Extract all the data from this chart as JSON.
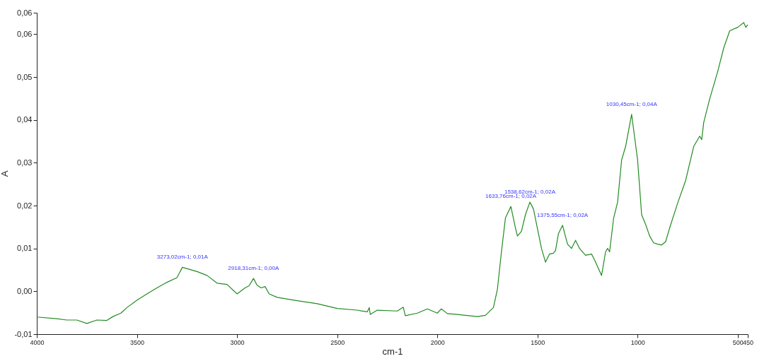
{
  "chart_data": {
    "type": "line",
    "xlabel": "cm-1",
    "ylabel": "A",
    "xlim": [
      4000,
      450
    ],
    "xticks": [
      4000,
      3500,
      3000,
      2500,
      2000,
      1500,
      1000,
      500,
      450
    ],
    "ylim": [
      -0.01,
      0.065
    ],
    "yticks": [
      {
        "value": -0.01,
        "label": "-0,01"
      },
      {
        "value": 0,
        "label": "0,00"
      },
      {
        "value": 0.01,
        "label": "0,01"
      },
      {
        "value": 0.02,
        "label": "0,02"
      },
      {
        "value": 0.03,
        "label": "0,03"
      },
      {
        "value": 0.04,
        "label": "0,04"
      },
      {
        "value": 0.05,
        "label": "0,05"
      },
      {
        "value": 0.06,
        "label": "0,06"
      },
      {
        "value": 0.065,
        "label": "0,06"
      }
    ],
    "grid": false,
    "legend": false,
    "marker": "none",
    "line_style": "solid",
    "series": [
      {
        "color": "#228b22",
        "x": [
          4000,
          3900,
          3850,
          3800,
          3750,
          3700,
          3650,
          3620,
          3580,
          3550,
          3500,
          3450,
          3400,
          3350,
          3300,
          3273,
          3200,
          3150,
          3100,
          3050,
          3000,
          2960,
          2940,
          2918,
          2900,
          2880,
          2860,
          2840,
          2800,
          2700,
          2600,
          2500,
          2400,
          2350,
          2340,
          2335,
          2300,
          2200,
          2170,
          2160,
          2100,
          2050,
          2000,
          1980,
          1950,
          1900,
          1800,
          1760,
          1720,
          1700,
          1680,
          1660,
          1633,
          1610,
          1600,
          1580,
          1560,
          1538,
          1520,
          1480,
          1460,
          1440,
          1420,
          1410,
          1395,
          1375,
          1350,
          1330,
          1310,
          1290,
          1260,
          1230,
          1210,
          1180,
          1160,
          1150,
          1140,
          1120,
          1100,
          1080,
          1060,
          1030,
          1000,
          980,
          960,
          940,
          920,
          900,
          880,
          860,
          840,
          800,
          760,
          720,
          690,
          680,
          670,
          640,
          600,
          570,
          540,
          500,
          470,
          460,
          450
        ],
        "values": [
          -0.006,
          -0.0064,
          -0.0067,
          -0.0067,
          -0.0075,
          -0.0067,
          -0.0068,
          -0.0059,
          -0.0051,
          -0.0038,
          -0.0021,
          -0.0006,
          0.0008,
          0.0021,
          0.0032,
          0.0056,
          0.0046,
          0.0037,
          0.0019,
          0.0016,
          -0.0006,
          0.0008,
          0.0013,
          0.003,
          0.0014,
          0.0008,
          0.0011,
          -0.0006,
          -0.0014,
          -0.0022,
          -0.0029,
          -0.004,
          -0.0044,
          -0.0048,
          -0.0038,
          -0.0054,
          -0.0044,
          -0.0046,
          -0.0037,
          -0.0057,
          -0.0051,
          -0.0041,
          -0.0051,
          -0.0041,
          -0.0052,
          -0.0054,
          -0.0059,
          -0.0056,
          -0.0038,
          0.0005,
          0.0092,
          0.0171,
          0.0198,
          0.0148,
          0.0129,
          0.014,
          0.0179,
          0.0208,
          0.0192,
          0.01,
          0.0068,
          0.0087,
          0.0089,
          0.0095,
          0.0135,
          0.0154,
          0.011,
          0.01,
          0.0119,
          0.01,
          0.0084,
          0.0087,
          0.0068,
          0.0037,
          0.0092,
          0.01,
          0.0092,
          0.017,
          0.0208,
          0.0306,
          0.0338,
          0.0413,
          0.0306,
          0.0179,
          0.0156,
          0.0129,
          0.0113,
          0.011,
          0.0108,
          0.0116,
          0.0148,
          0.0206,
          0.0259,
          0.0338,
          0.0362,
          0.0354,
          0.0394,
          0.0449,
          0.0513,
          0.0568,
          0.0608,
          0.0616,
          0.0627,
          0.0616,
          0.0622
        ]
      }
    ],
    "annotations": [
      {
        "text": "3273,02cm-1; 0,01A",
        "x": 3273,
        "y": 0.0056
      },
      {
        "text": "2918,31cm-1; 0,00A",
        "x": 2918,
        "y": 0.003
      },
      {
        "text": "1633,76cm-1; 0,02A",
        "x": 1633,
        "y": 0.0198
      },
      {
        "text": "1538,62cm-1; 0,02A",
        "x": 1538,
        "y": 0.0208
      },
      {
        "text": "1375,55cm-1; 0,02A",
        "x": 1375,
        "y": 0.0154
      },
      {
        "text": "1030,45cm-1; 0,04A",
        "x": 1030,
        "y": 0.0413
      }
    ]
  }
}
